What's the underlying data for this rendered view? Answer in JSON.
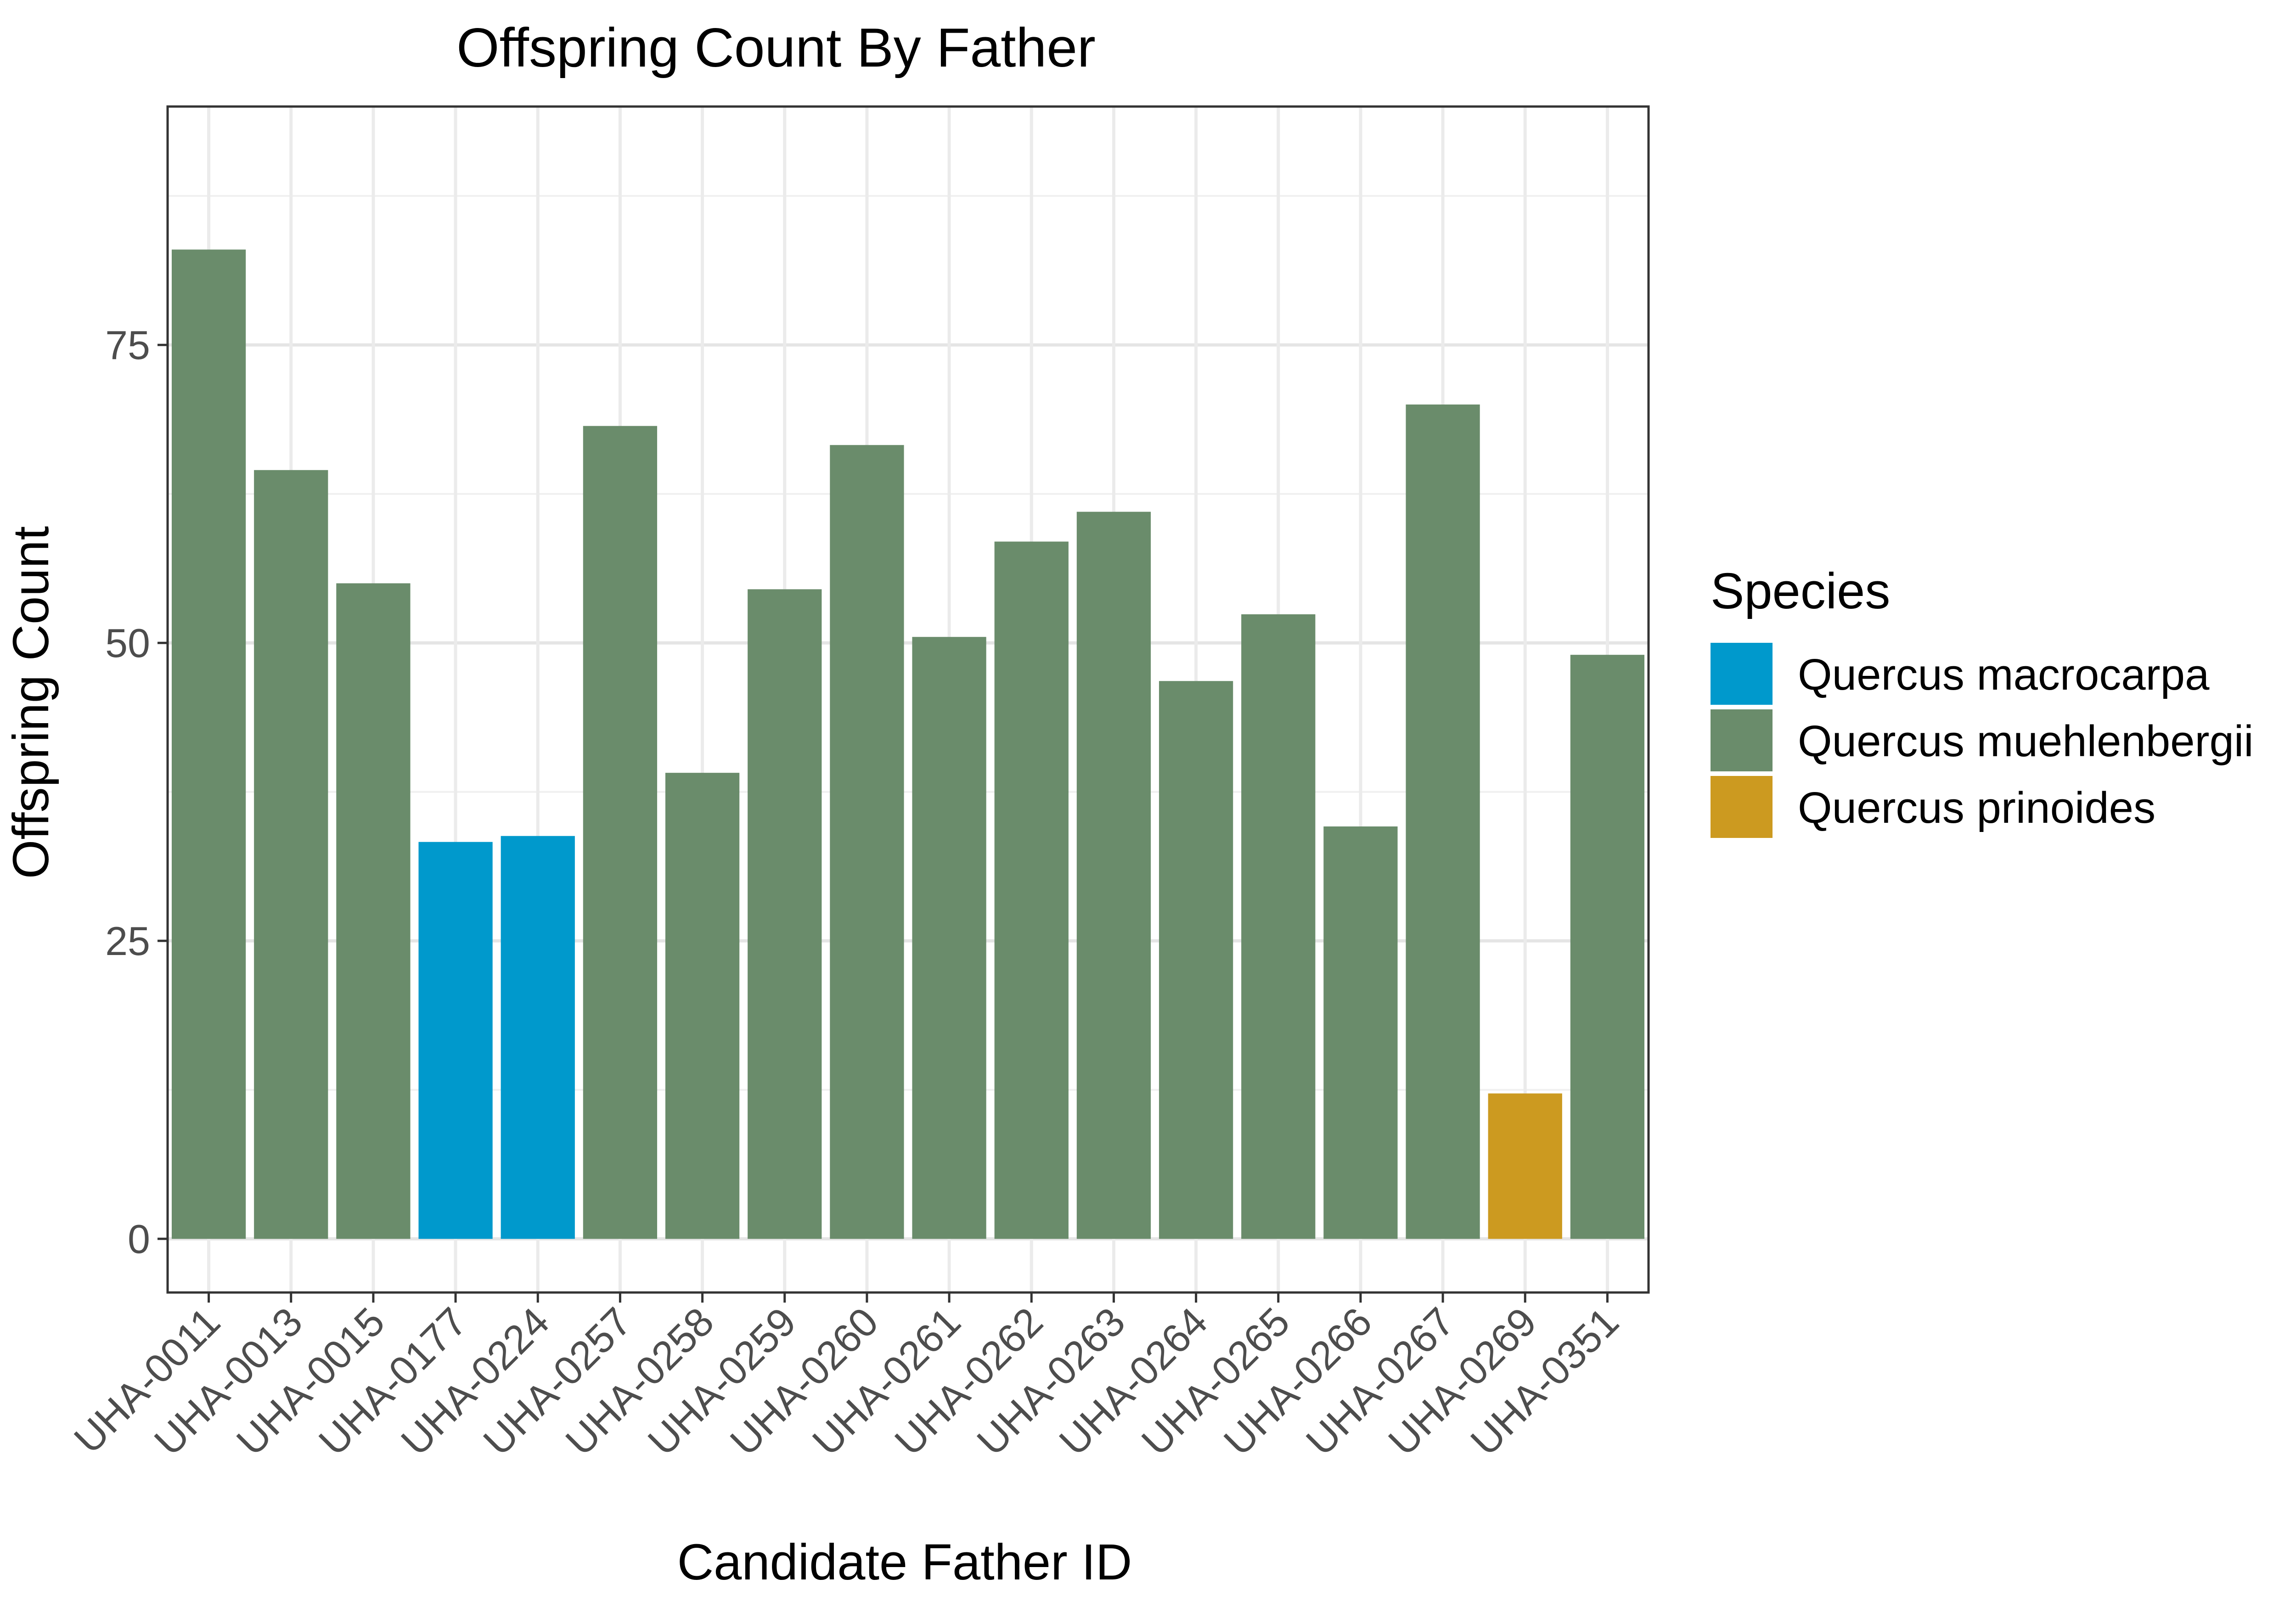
{
  "chart_data": {
    "type": "bar",
    "title": "Offspring Count By Father",
    "xlabel": "Candidate Father ID",
    "ylabel": "Offspring Count",
    "ylim": [
      -4.5,
      95
    ],
    "yticks": [
      0,
      25,
      50,
      75
    ],
    "grid": true,
    "legend": {
      "title": "Species",
      "position": "right",
      "entries": [
        {
          "label": "Quercus macrocarpa",
          "color": "#0099cc"
        },
        {
          "label": "Quercus muehlenbergii",
          "color": "#6a8c6b"
        },
        {
          "label": "Quercus prinoides",
          "color": "#cc9a20"
        }
      ]
    },
    "categories": [
      "UHA-0011",
      "UHA-0013",
      "UHA-0015",
      "UHA-0177",
      "UHA-0224",
      "UHA-0257",
      "UHA-0258",
      "UHA-0259",
      "UHA-0260",
      "UHA-0261",
      "UHA-0262",
      "UHA-0263",
      "UHA-0264",
      "UHA-0265",
      "UHA-0266",
      "UHA-0267",
      "UHA-0269",
      "UHA-0351"
    ],
    "values": [
      83,
      64.5,
      55,
      33.3,
      33.8,
      68.2,
      39.1,
      54.5,
      66.6,
      50.5,
      58.5,
      61,
      46.8,
      52.4,
      34.6,
      70,
      12.2,
      49
    ],
    "species": [
      "Quercus muehlenbergii",
      "Quercus muehlenbergii",
      "Quercus muehlenbergii",
      "Quercus macrocarpa",
      "Quercus macrocarpa",
      "Quercus muehlenbergii",
      "Quercus muehlenbergii",
      "Quercus muehlenbergii",
      "Quercus muehlenbergii",
      "Quercus muehlenbergii",
      "Quercus muehlenbergii",
      "Quercus muehlenbergii",
      "Quercus muehlenbergii",
      "Quercus muehlenbergii",
      "Quercus muehlenbergii",
      "Quercus muehlenbergii",
      "Quercus prinoides",
      "Quercus muehlenbergii"
    ]
  }
}
